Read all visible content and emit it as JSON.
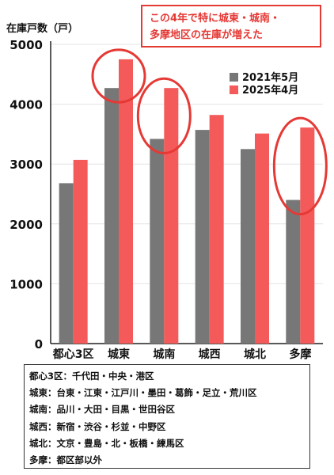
{
  "chart_data": {
    "type": "bar",
    "ylabel": "在庫戸数（戸）",
    "ylim": [
      0,
      5000
    ],
    "yticks": [
      0,
      1000,
      2000,
      3000,
      4000,
      5000
    ],
    "grid": true,
    "legend_position": "top-right",
    "categories": [
      "都心3区",
      "城東",
      "城南",
      "城西",
      "城北",
      "多摩"
    ],
    "series": [
      {
        "name": "2021年5月",
        "color": "#777777",
        "values": [
          2680,
          4270,
          3420,
          3570,
          3250,
          2400
        ]
      },
      {
        "name": "2025年4月",
        "color": "#f55a5a",
        "values": [
          3070,
          4750,
          4270,
          3820,
          3510,
          3610
        ]
      }
    ],
    "highlighted_categories": [
      "城東",
      "城南",
      "多摩"
    ],
    "highlight_color": "#e53935"
  },
  "callout": {
    "lines": [
      "この4年で特に城東・城南・",
      "多摩地区の在庫が増えた"
    ]
  },
  "notes": [
    "都心3区：千代田・中央・港区",
    "城東：台東・江東・江戸川・墨田・葛飾・足立・荒川区",
    "城南：品川・大田・目黒・世田谷区",
    "城西：新宿・渋谷・杉並・中野区",
    "城北：文京・豊島・北・板橋・練馬区",
    "多摩：都区部以外"
  ]
}
